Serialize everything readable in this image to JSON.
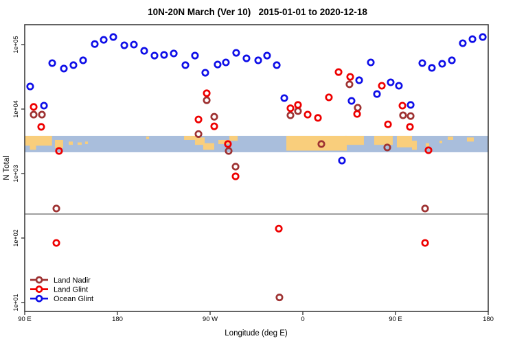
{
  "chart_data": {
    "type": "scatter",
    "title": "10N-20N March (Ver 10)   2015-01-01 to 2020-12-18",
    "xlabel": "Longitude (deg E)",
    "ylabel": "N Total",
    "x_axis": {
      "range": [
        90,
        540
      ],
      "ticks": [
        {
          "value": 90,
          "label": "90 E"
        },
        {
          "value": 180,
          "label": "180"
        },
        {
          "value": 270,
          "label": "90 W"
        },
        {
          "value": 360,
          "label": "0"
        },
        {
          "value": 450,
          "label": "90 E"
        },
        {
          "value": 540,
          "label": "180"
        }
      ]
    },
    "y_axis": {
      "scale": "log",
      "range": [
        7,
        200000
      ],
      "ticks": [
        {
          "value": 10,
          "label": "1e+01"
        },
        {
          "value": 100,
          "label": "1e+02"
        },
        {
          "value": 1000,
          "label": "1e+03"
        },
        {
          "value": 10000,
          "label": "1e+04"
        },
        {
          "value": 100000,
          "label": "1e+05"
        }
      ]
    },
    "reference_line": {
      "n": 236,
      "color": "#404040"
    },
    "map_band": {
      "n_top": 3850,
      "n_bottom": 2140,
      "ocean_color": "#a9bedc",
      "land_color": "#f9ce7c",
      "land_patches": [
        [
          90,
          116.5,
          0,
          0.6
        ],
        [
          95,
          101,
          0.5,
          0.35
        ],
        [
          119.3,
          127.3,
          0.25,
          0.5
        ],
        [
          132.7,
          136.7,
          0.35,
          0.2
        ],
        [
          141.3,
          145.3,
          0.4,
          0.15
        ],
        [
          148.7,
          151.3,
          0.35,
          0.15
        ],
        [
          208,
          210.7,
          0.05,
          0.15
        ],
        [
          244.7,
          256.7,
          0,
          0.25
        ],
        [
          255.3,
          264.7,
          0.1,
          0.45
        ],
        [
          263.3,
          274,
          0.45,
          0.4
        ],
        [
          278,
          288.7,
          0.25,
          0.25
        ],
        [
          288.7,
          296.7,
          0,
          0.3
        ],
        [
          344,
          402.7,
          0,
          0.9
        ],
        [
          400.7,
          419.3,
          0,
          0.55
        ],
        [
          429.3,
          447.3,
          0,
          0.55
        ],
        [
          451.3,
          466,
          0,
          0.7
        ],
        [
          466,
          470.7,
          0.3,
          0.55
        ],
        [
          479.3,
          482.7,
          0.45,
          0.2
        ],
        [
          492.7,
          495.3,
          0.3,
          0.15
        ],
        [
          500.7,
          506,
          0.05,
          0.2
        ],
        [
          519.3,
          526,
          0.1,
          0.25
        ]
      ]
    },
    "legend": {
      "position": "bottom-left"
    },
    "series": [
      {
        "name": "Land Nadir",
        "color": "#9e3232",
        "points": [
          [
            98.7,
            8200
          ],
          [
            106.7,
            8200
          ],
          [
            120.7,
            287
          ],
          [
            258.7,
            4100
          ],
          [
            266.7,
            13700
          ],
          [
            274.0,
            7600
          ],
          [
            288.0,
            2240
          ],
          [
            294.7,
            1280
          ],
          [
            337.3,
            12
          ],
          [
            348.0,
            8000
          ],
          [
            355.3,
            9300
          ],
          [
            378.0,
            2870
          ],
          [
            405.3,
            24200
          ],
          [
            413.3,
            10500
          ],
          [
            442.0,
            2540
          ],
          [
            457.3,
            8000
          ],
          [
            464.7,
            7800
          ],
          [
            478.7,
            287
          ]
        ]
      },
      {
        "name": "Land Glint",
        "color": "#ee0000",
        "points": [
          [
            98.7,
            10800
          ],
          [
            106.0,
            5300
          ],
          [
            123.3,
            2240
          ],
          [
            120.7,
            84
          ],
          [
            258.7,
            6900
          ],
          [
            266.7,
            17600
          ],
          [
            274.0,
            5400
          ],
          [
            287.3,
            2870
          ],
          [
            294.7,
            905
          ],
          [
            336.7,
            140
          ],
          [
            348.0,
            10300
          ],
          [
            355.3,
            11600
          ],
          [
            364.7,
            8200
          ],
          [
            374.7,
            7300
          ],
          [
            385.3,
            15200
          ],
          [
            394.7,
            37500
          ],
          [
            406.0,
            31600
          ],
          [
            412.7,
            8400
          ],
          [
            436.7,
            23000
          ],
          [
            442.7,
            5800
          ],
          [
            456.7,
            11300
          ],
          [
            464.0,
            5300
          ],
          [
            482.0,
            2300
          ],
          [
            478.7,
            84
          ]
        ]
      },
      {
        "name": "Ocean Glint",
        "color": "#0f0fe8",
        "points": [
          [
            95.3,
            22400
          ],
          [
            108.7,
            11300
          ],
          [
            116.7,
            51600
          ],
          [
            128.0,
            42500
          ],
          [
            137.3,
            48000
          ],
          [
            146.7,
            57000
          ],
          [
            158.0,
            102000
          ],
          [
            166.7,
            118500
          ],
          [
            176.0,
            131000
          ],
          [
            186.7,
            97500
          ],
          [
            196.0,
            100000
          ],
          [
            206.0,
            80000
          ],
          [
            216.0,
            67500
          ],
          [
            225.3,
            69200
          ],
          [
            234.7,
            72800
          ],
          [
            246.0,
            48000
          ],
          [
            255.3,
            67500
          ],
          [
            265.3,
            36600
          ],
          [
            277.3,
            49100
          ],
          [
            285.3,
            52900
          ],
          [
            295.3,
            74500
          ],
          [
            305.3,
            61200
          ],
          [
            316.7,
            57000
          ],
          [
            325.3,
            67500
          ],
          [
            334.7,
            48000
          ],
          [
            342.0,
            14800
          ],
          [
            398.0,
            1590
          ],
          [
            407.3,
            13400
          ],
          [
            414.7,
            28000
          ],
          [
            426.0,
            52900
          ],
          [
            432.0,
            17100
          ],
          [
            445.3,
            26000
          ],
          [
            453.3,
            23000
          ],
          [
            464.7,
            11600
          ],
          [
            476.0,
            51600
          ],
          [
            485.3,
            43500
          ],
          [
            495.3,
            50400
          ],
          [
            504.7,
            57000
          ],
          [
            515.3,
            105000
          ],
          [
            524.7,
            121500
          ],
          [
            534.7,
            131000
          ]
        ]
      }
    ]
  }
}
